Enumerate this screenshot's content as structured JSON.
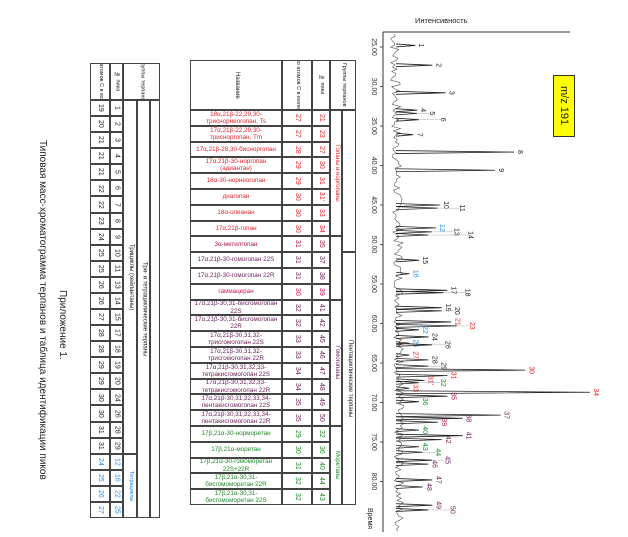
{
  "caption": {
    "title": "Приложение 1.",
    "subtitle": "Типовая масс-хроматограмма терпанов и таблица идентификации пиков"
  },
  "colors": {
    "tricyclic": "#222222",
    "tetracyclic": "#1e88e5",
    "hopane": "#e8232a",
    "methylhopane": "#b0134e",
    "homohopane": "#6b1f5c",
    "gammacerane": "#d0145a",
    "moretane": "#1f8a2a",
    "highlight": "#ffff00"
  },
  "chart_data": {
    "type": "line",
    "title": "m/z 191",
    "ylabel": "Интенсивность",
    "xlabel": "Время",
    "xlim": [
      23,
      85
    ],
    "x_ticks": [
      "25.00",
      "30.00",
      "35.00",
      "40.00",
      "45.00",
      "50.00",
      "55.00",
      "60.00",
      "65.00",
      "70.00",
      "75.00",
      "80.00"
    ],
    "peaks": [
      {
        "label": "1",
        "time": 24.8,
        "rel_intensity": 8,
        "group": "tricyclic"
      },
      {
        "label": "2",
        "time": 27.3,
        "rel_intensity": 17,
        "group": "tricyclic"
      },
      {
        "label": "3",
        "time": 30.8,
        "rel_intensity": 24,
        "group": "tricyclic"
      },
      {
        "label": "4",
        "time": 33.0,
        "rel_intensity": 9,
        "group": "tricyclic"
      },
      {
        "label": "5",
        "time": 33.4,
        "rel_intensity": 9,
        "group": "tricyclic"
      },
      {
        "label": "6",
        "time": 34.2,
        "rel_intensity": 10,
        "group": "tricyclic"
      },
      {
        "label": "7",
        "time": 36.1,
        "rel_intensity": 7,
        "group": "tricyclic"
      },
      {
        "label": "8",
        "time": 38.3,
        "rel_intensity": 60,
        "group": "tricyclic"
      },
      {
        "label": "9",
        "time": 40.6,
        "rel_intensity": 50,
        "group": "tricyclic"
      },
      {
        "label": "10",
        "time": 45.0,
        "rel_intensity": 21,
        "group": "tricyclic"
      },
      {
        "label": "11",
        "time": 45.4,
        "rel_intensity": 20,
        "group": "tricyclic"
      },
      {
        "label": "12",
        "time": 47.9,
        "rel_intensity": 19,
        "group": "tetracyclic"
      },
      {
        "label": "13",
        "time": 48.4,
        "rel_intensity": 17,
        "group": "tricyclic"
      },
      {
        "label": "14",
        "time": 48.8,
        "rel_intensity": 15,
        "group": "tricyclic"
      },
      {
        "label": "15",
        "time": 52.0,
        "rel_intensity": 10,
        "group": "tricyclic"
      },
      {
        "label": "16",
        "time": 53.7,
        "rel_intensity": 5,
        "group": "tetracyclic"
      },
      {
        "label": "17",
        "time": 55.8,
        "rel_intensity": 25,
        "group": "tricyclic"
      },
      {
        "label": "18",
        "time": 56.1,
        "rel_intensity": 23,
        "group": "tricyclic"
      },
      {
        "label": "19",
        "time": 58.0,
        "rel_intensity": 22,
        "group": "tricyclic"
      },
      {
        "label": "20",
        "time": 58.4,
        "rel_intensity": 22,
        "group": "tricyclic"
      },
      {
        "label": "21",
        "time": 59.8,
        "rel_intensity": 27,
        "group": "hopane"
      },
      {
        "label": "23",
        "time": 60.3,
        "rel_intensity": 30,
        "group": "hopane"
      },
      {
        "label": "22",
        "time": 60.8,
        "rel_intensity": 10,
        "group": "tetracyclic"
      },
      {
        "label": "24",
        "time": 61.7,
        "rel_intensity": 15,
        "group": "tricyclic"
      },
      {
        "label": "25",
        "time": 62.5,
        "rel_intensity": 5,
        "group": "tetracyclic"
      },
      {
        "label": "26",
        "time": 62.7,
        "rel_intensity": 17,
        "group": "tricyclic"
      },
      {
        "label": "27",
        "time": 64.0,
        "rel_intensity": 5,
        "group": "hopane"
      },
      {
        "label": "28",
        "time": 64.6,
        "rel_intensity": 15,
        "group": "tricyclic"
      },
      {
        "label": "29",
        "time": 65.4,
        "rel_intensity": 15,
        "group": "tricyclic"
      },
      {
        "label": "30",
        "time": 65.9,
        "rel_intensity": 66,
        "group": "hopane"
      },
      {
        "label": "31",
        "time": 66.6,
        "rel_intensity": 25,
        "group": "hopane"
      },
      {
        "label": "31'",
        "time": 67.2,
        "rel_intensity": 13,
        "group": "hopane"
      },
      {
        "label": "32",
        "time": 67.5,
        "rel_intensity": 10,
        "group": "moretane"
      },
      {
        "label": "33",
        "time": 68.2,
        "rel_intensity": 5,
        "group": "hopane"
      },
      {
        "label": "34",
        "time": 68.7,
        "rel_intensity": 100,
        "group": "hopane"
      },
      {
        "label": "35",
        "time": 69.2,
        "rel_intensity": 25,
        "group": "methylhopane"
      },
      {
        "label": "36",
        "time": 69.9,
        "rel_intensity": 10,
        "group": "moretane"
      },
      {
        "label": "37",
        "time": 71.6,
        "rel_intensity": 53,
        "group": "homohopane"
      },
      {
        "label": "38",
        "time": 72.0,
        "rel_intensity": 33,
        "group": "homohopane"
      },
      {
        "label": "39",
        "time": 72.5,
        "rel_intensity": 20,
        "group": "gammacerane"
      },
      {
        "label": "40",
        "time": 73.5,
        "rel_intensity": 10,
        "group": "moretane"
      },
      {
        "label": "41",
        "time": 74.2,
        "rel_intensity": 33,
        "group": "homohopane"
      },
      {
        "label": "42",
        "time": 74.7,
        "rel_intensity": 22,
        "group": "homohopane"
      },
      {
        "label": "43",
        "time": 75.6,
        "rel_intensity": 10,
        "group": "moretane"
      },
      {
        "label": "44",
        "time": 76.3,
        "rel_intensity": 12,
        "group": "moretane"
      },
      {
        "label": "45",
        "time": 77.3,
        "rel_intensity": 17,
        "group": "homohopane"
      },
      {
        "label": "46",
        "time": 77.8,
        "rel_intensity": 15,
        "group": "homohopane"
      },
      {
        "label": "47",
        "time": 79.8,
        "rel_intensity": 17,
        "group": "homohopane"
      },
      {
        "label": "48",
        "time": 80.7,
        "rel_intensity": 12,
        "group": "homohopane"
      },
      {
        "label": "49",
        "time": 83.0,
        "rel_intensity": 17,
        "group": "homohopane"
      },
      {
        "label": "50",
        "time": 83.6,
        "rel_intensity": 15,
        "group": "homohopane"
      }
    ]
  },
  "table1": {
    "header_groups": "Группы терпанов",
    "header_peak": "№ пика",
    "header_carbon": "Число атомов С в молекуле",
    "supergroup": "Три- и тетрациклические терпаны",
    "group_tricyclic": "Трициклы (хейлантаны)",
    "group_tetracyclic": "Тетрациклы",
    "peaks": [
      "1",
      "2",
      "3",
      "4",
      "5",
      "6",
      "7",
      "8",
      "9",
      "10",
      "11",
      "13",
      "14",
      "15",
      "17",
      "18",
      "19",
      "20",
      "24",
      "26",
      "28",
      "29",
      "12",
      "16",
      "22",
      "25"
    ],
    "carbons": [
      "19",
      "20",
      "21",
      "21",
      "21",
      "22",
      "22",
      "23",
      "24",
      "25",
      "25",
      "26",
      "26",
      "27",
      "28",
      "28",
      "29",
      "29",
      "30",
      "30",
      "31",
      "31",
      "24",
      "25",
      "26",
      "27"
    ]
  },
  "table2": {
    "header_name": "Название",
    "header_carbon": "Число атомов С в молекуле",
    "header_peak": "№ пика",
    "header_groups": "Группы терпанов",
    "group_hopanes": "Гопаны и норгопаны",
    "group_pentacyclic": "Пентациклические терпаны",
    "group_homohopanes": "Гомогопаны",
    "group_moretanes": "Моретаны",
    "rows": [
      {
        "name": "18α,21β-22,29,30-триснорнеогопан, Ts",
        "carbon": "27",
        "peak": "21",
        "group": "hopane"
      },
      {
        "name": "17α,21β-22,29,30-трисноргопан, Tm",
        "carbon": "27",
        "peak": "23",
        "group": "hopane"
      },
      {
        "name": "17α,21β-28,30-бисноргопан",
        "carbon": "28",
        "peak": "27",
        "group": "hopane"
      },
      {
        "name": "17α,21β-30-норгопан (адиантан)",
        "carbon": "29",
        "peak": "30",
        "group": "hopane"
      },
      {
        "name": "18α-30-норнеогопан",
        "carbon": "29",
        "peak": "31",
        "group": "hopane"
      },
      {
        "name": "диагопан",
        "carbon": "30",
        "peak": "31'",
        "group": "hopane"
      },
      {
        "name": "18α-олеанан",
        "carbon": "30",
        "peak": "33",
        "group": "hopane"
      },
      {
        "name": "17α,21β-гопан",
        "carbon": "30",
        "peak": "34",
        "group": "hopane"
      },
      {
        "name": "3α-метилгопан",
        "carbon": "31",
        "peak": "35",
        "group": "methylhopane"
      },
      {
        "name": "17α,21β-30-гомогопан 22S",
        "carbon": "31",
        "peak": "37",
        "group": "homohopane"
      },
      {
        "name": "17α,21β-30-гомогопан 22R",
        "carbon": "31",
        "peak": "38",
        "group": "homohopane"
      },
      {
        "name": "гаммацеран",
        "carbon": "30",
        "peak": "39",
        "group": "gammacerane"
      },
      {
        "name": "17α,21β-30,31-бисгомогопан 22S",
        "carbon": "32",
        "peak": "41",
        "group": "homohopane"
      },
      {
        "name": "17α,21β-30,31-бисгомогопан 22R",
        "carbon": "32",
        "peak": "42",
        "group": "homohopane"
      },
      {
        "name": "17α,21β-30,31,32-трисгомогопан 22S",
        "carbon": "33",
        "peak": "45",
        "group": "homohopane"
      },
      {
        "name": "17α,21β-30,31,32-трисгомогопан 22R",
        "carbon": "33",
        "peak": "46",
        "group": "homohopane"
      },
      {
        "name": "17α,21β-30,31,32,33-тетракисгомогопан 22S",
        "carbon": "34",
        "peak": "47",
        "group": "homohopane"
      },
      {
        "name": "17α,21β-30,31,32,33-тетракисгомогопан 22R",
        "carbon": "34",
        "peak": "48",
        "group": "homohopane"
      },
      {
        "name": "17α,21β-30,31,32,33,34-пентакисгомогопан 22S",
        "carbon": "35",
        "peak": "49",
        "group": "homohopane"
      },
      {
        "name": "17α,21β-30,31,32,33,34-пентакисгомогопан 22R",
        "carbon": "35",
        "peak": "50",
        "group": "homohopane"
      },
      {
        "name": "17β,21α-30-норморетан",
        "carbon": "29",
        "peak": "32",
        "group": "moretane"
      },
      {
        "name": "17β,21α-моретан",
        "carbon": "30",
        "peak": "36",
        "group": "moretane"
      },
      {
        "name": "17β,21α-30-гомоморетан 22S+22R",
        "carbon": "31",
        "peak": "40",
        "group": "moretane"
      },
      {
        "name": "17β,21α-30,31-бисгомоморетан 22R",
        "carbon": "32",
        "peak": "44",
        "group": "moretane"
      },
      {
        "name": "17β,21α-30,31-бисгомоморетан 22S",
        "carbon": "32",
        "peak": "43",
        "group": "moretane"
      }
    ]
  }
}
